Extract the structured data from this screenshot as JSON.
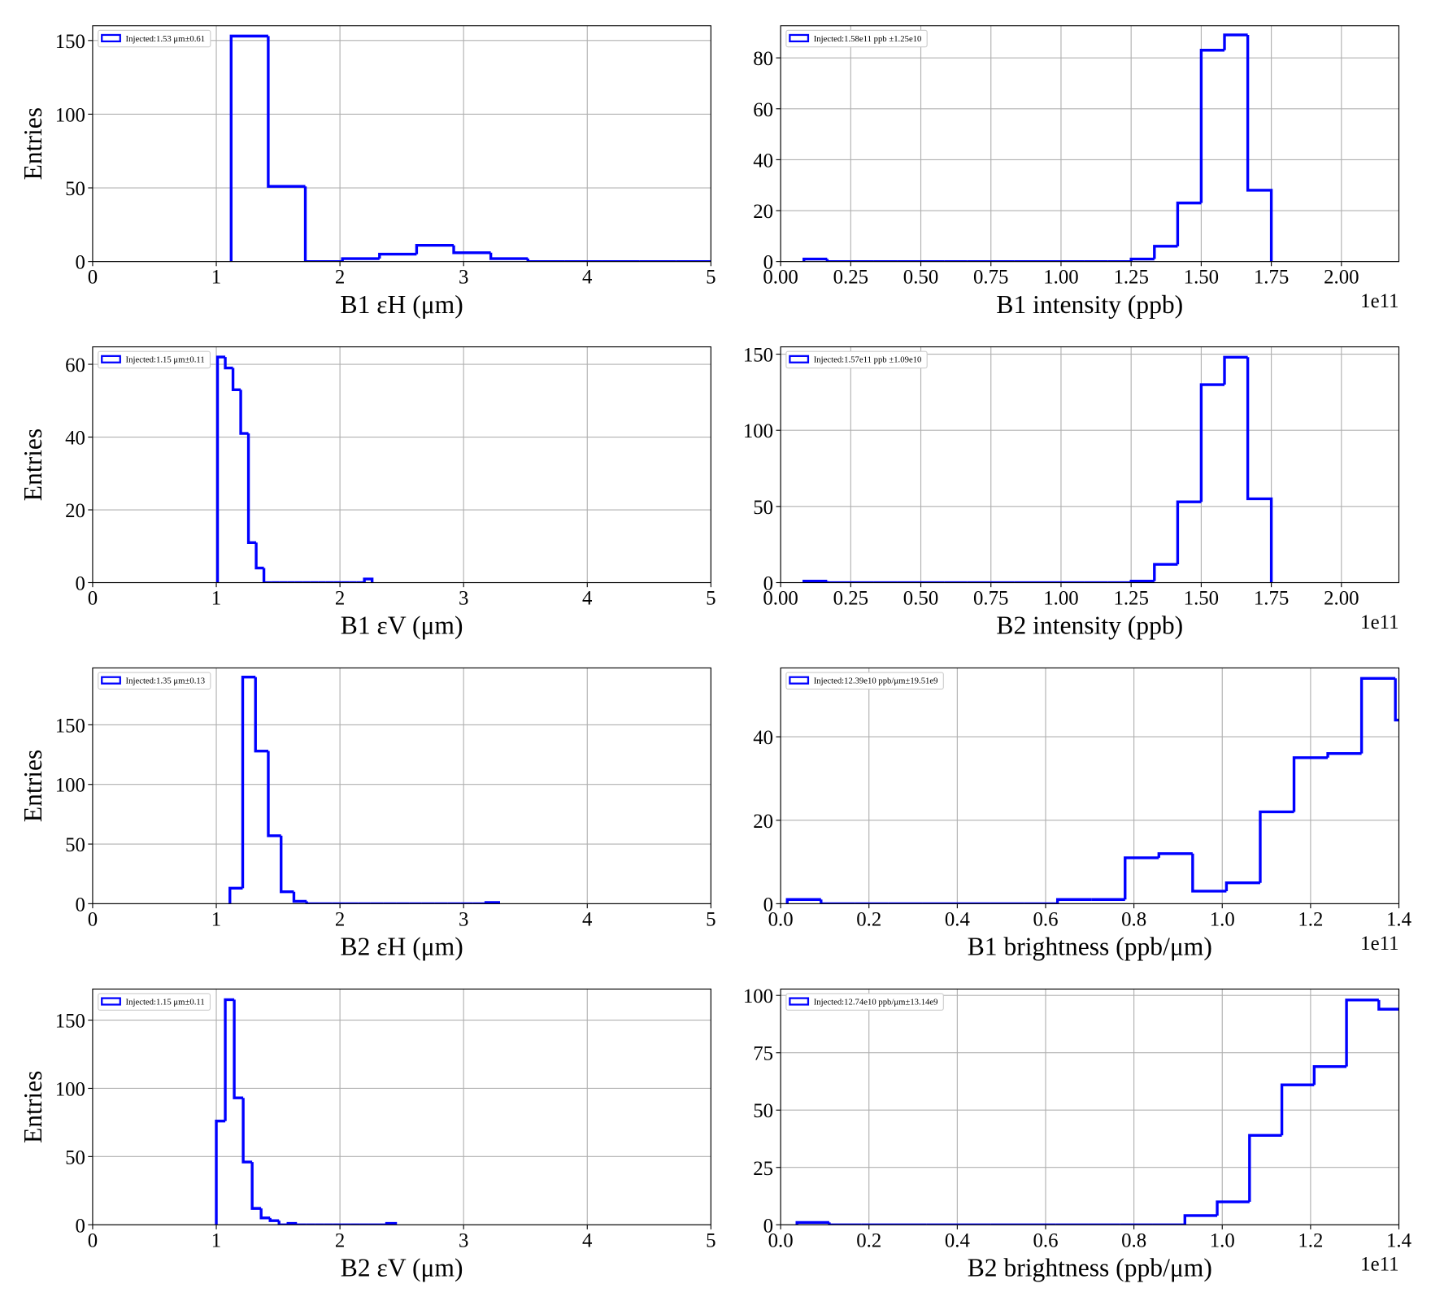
{
  "chart_data": [
    {
      "type": "histogram",
      "xlabel": "B1 εH (μm)",
      "ylabel": "Entries",
      "legend": "upper left",
      "grid": true,
      "xlim": [
        0,
        5
      ],
      "xticks": [
        0,
        1,
        2,
        3,
        4,
        5
      ],
      "ylim": [
        0,
        160
      ],
      "yticks": [
        0,
        50,
        100,
        150
      ],
      "bins": [
        1.12,
        1.42,
        1.72,
        2.02,
        2.32,
        2.62,
        2.92,
        3.22,
        3.52,
        3.82,
        4.12,
        4.42,
        4.72,
        5.02
      ],
      "series": [
        {
          "name": "Injected:1.53 μm±0.61",
          "color": "#0000ff",
          "values": [
            153,
            51,
            0,
            2,
            5,
            11,
            6,
            2,
            0,
            0,
            0,
            0,
            0
          ]
        }
      ]
    },
    {
      "type": "histogram",
      "xlabel": "B1 intensity (ppb)",
      "offset_text": "1e11",
      "legend": "upper left",
      "grid": true,
      "xlim": [
        0,
        2.205
      ],
      "xticks": [
        {
          "value": 0,
          "label": "0.00"
        },
        0.25,
        {
          "value": 0.5,
          "label": "0.50"
        },
        0.75,
        {
          "value": 1,
          "label": "1.00"
        },
        1.25,
        {
          "value": 1.5,
          "label": "1.50"
        },
        1.75,
        {
          "value": 2,
          "label": "2.00"
        }
      ],
      "ylim": [
        0,
        92.6
      ],
      "yticks": [
        0,
        20,
        40,
        60,
        80
      ],
      "bins": [
        0.083,
        0.166,
        0.25,
        0.333,
        0.416,
        0.5,
        0.583,
        0.666,
        0.75,
        0.833,
        0.916,
        1.0,
        1.083,
        1.166,
        1.25,
        1.333,
        1.416,
        1.5,
        1.583,
        1.666,
        1.75
      ],
      "series": [
        {
          "name": "Injected:1.58e11 ppb ±1.25e10",
          "color": "#0000ff",
          "values": [
            1,
            0,
            0,
            0,
            0,
            0,
            0,
            0,
            0,
            0,
            0,
            0,
            0,
            0,
            1,
            6,
            23,
            83,
            89,
            28
          ]
        }
      ]
    },
    {
      "type": "histogram",
      "xlabel": "B1 εV (μm)",
      "ylabel": "Entries",
      "legend": "upper left",
      "grid": true,
      "xlim": [
        0,
        5
      ],
      "xticks": [
        0,
        1,
        2,
        3,
        4,
        5
      ],
      "ylim": [
        0,
        64.8
      ],
      "yticks": [
        0,
        20,
        40,
        60
      ],
      "bins": [
        1.01,
        1.0725,
        1.135,
        1.1975,
        1.26,
        1.3225,
        1.385,
        1.4475,
        1.51,
        1.5725,
        1.635,
        1.6975,
        1.76,
        1.8225,
        1.885,
        1.9475,
        2.01,
        2.0725,
        2.135,
        2.1975,
        2.26
      ],
      "series": [
        {
          "name": "Injected:1.15 μm±0.11",
          "color": "#0000ff",
          "values": [
            62,
            59,
            53,
            41,
            11,
            4,
            0,
            0,
            0,
            0,
            0,
            0,
            0,
            0,
            0,
            0,
            0,
            0,
            0,
            1
          ]
        }
      ]
    },
    {
      "type": "histogram",
      "xlabel": "B2 intensity (ppb)",
      "offset_text": "1e11",
      "legend": "upper left",
      "grid": true,
      "xlim": [
        0,
        2.205
      ],
      "xticks": [
        {
          "value": 0,
          "label": "0.00"
        },
        0.25,
        {
          "value": 0.5,
          "label": "0.50"
        },
        0.75,
        {
          "value": 1,
          "label": "1.00"
        },
        1.25,
        {
          "value": 1.5,
          "label": "1.50"
        },
        1.75,
        {
          "value": 2,
          "label": "2.00"
        }
      ],
      "ylim": [
        0,
        154.8
      ],
      "yticks": [
        0,
        50,
        100,
        150
      ],
      "bins": [
        0.083,
        0.166,
        0.25,
        0.333,
        0.416,
        0.5,
        0.583,
        0.666,
        0.75,
        0.833,
        0.916,
        1.0,
        1.083,
        1.166,
        1.25,
        1.333,
        1.416,
        1.5,
        1.583,
        1.666,
        1.75
      ],
      "series": [
        {
          "name": "Injected:1.57e11 ppb ±1.09e10",
          "color": "#0000ff",
          "values": [
            1,
            0,
            0,
            0,
            0,
            0,
            0,
            0,
            0,
            0,
            0,
            0,
            0,
            0,
            1,
            12,
            53,
            130,
            148,
            55
          ]
        }
      ]
    },
    {
      "type": "histogram",
      "xlabel": "B2 εH (μm)",
      "ylabel": "Entries",
      "legend": "upper left",
      "grid": true,
      "xlim": [
        0,
        5
      ],
      "xticks": [
        0,
        1,
        2,
        3,
        4,
        5
      ],
      "ylim": [
        0,
        197.7
      ],
      "yticks": [
        0,
        50,
        100,
        150
      ],
      "bins": [
        1.11,
        1.2135,
        1.317,
        1.4205,
        1.524,
        1.6275,
        1.731,
        1.8345,
        1.938,
        2.0415,
        2.145,
        2.2485,
        2.352,
        2.4555,
        2.559,
        2.6625,
        2.766,
        2.8695,
        2.973,
        3.0765,
        3.18,
        3.2835
      ],
      "series": [
        {
          "name": "Injected:1.35 μm±0.13",
          "color": "#0000ff",
          "values": [
            13,
            190,
            128,
            57,
            10,
            2,
            0,
            0,
            0,
            0,
            0,
            0,
            0,
            0,
            0,
            0,
            0,
            0,
            0,
            0,
            1
          ]
        }
      ]
    },
    {
      "type": "histogram",
      "xlabel": "B1 brightness (ppb/μm)",
      "offset_text": "1e11",
      "legend": "upper left",
      "grid": true,
      "xlim": [
        0,
        1.4
      ],
      "xticks": [
        {
          "value": 0,
          "label": "0.0"
        },
        0.2,
        0.4,
        0.6,
        0.8,
        {
          "value": 1,
          "label": "1.0"
        },
        1.2,
        1.4
      ],
      "ylim": [
        0,
        56.5
      ],
      "yticks": [
        0,
        20,
        40
      ],
      "bins": [
        0.015,
        0.0915,
        0.168,
        0.2445,
        0.321,
        0.3975,
        0.474,
        0.5505,
        0.627,
        0.7035,
        0.78,
        0.8565,
        0.933,
        1.0095,
        1.086,
        1.1625,
        1.239,
        1.3155,
        1.392,
        1.4685
      ],
      "series": [
        {
          "name": "Injected:12.39e10 ppb/μm±19.51e9",
          "color": "#0000ff",
          "values": [
            1,
            0,
            0,
            0,
            0,
            0,
            0,
            0,
            1,
            1,
            11,
            12,
            3,
            5,
            22,
            35,
            36,
            54,
            44
          ]
        }
      ]
    },
    {
      "type": "histogram",
      "xlabel": "B2 εV (μm)",
      "ylabel": "Entries",
      "legend": "upper left",
      "grid": true,
      "xlim": [
        0,
        5
      ],
      "xticks": [
        0,
        1,
        2,
        3,
        4,
        5
      ],
      "ylim": [
        0,
        172.8
      ],
      "yticks": [
        0,
        50,
        100,
        150
      ],
      "bins": [
        1,
        1.0725,
        1.145,
        1.2175,
        1.29,
        1.3625,
        1.435,
        1.5075,
        1.58,
        1.6525,
        1.725,
        1.7975,
        1.87,
        1.9425,
        2.015,
        2.0875,
        2.16,
        2.2325,
        2.305,
        2.3775,
        2.45
      ],
      "series": [
        {
          "name": "Injected:1.15 μm±0.11",
          "color": "#0000ff",
          "values": [
            76,
            165,
            93,
            46,
            12,
            5,
            3,
            0,
            1,
            0,
            0,
            0,
            0,
            0,
            0,
            0,
            0,
            0,
            0,
            1
          ]
        }
      ]
    },
    {
      "type": "histogram",
      "xlabel": "B2 brightness (ppb/μm)",
      "offset_text": "1e11",
      "legend": "upper left",
      "grid": true,
      "xlim": [
        0,
        1.4
      ],
      "xticks": [
        {
          "value": 0,
          "label": "0.0"
        },
        0.2,
        0.4,
        0.6,
        0.8,
        {
          "value": 1,
          "label": "1.0"
        },
        1.2,
        1.4
      ],
      "ylim": [
        0,
        102.8
      ],
      "yticks": [
        0,
        25,
        50,
        75,
        100
      ],
      "bins": [
        0.037,
        0.1102,
        0.1834,
        0.2566,
        0.3298,
        0.403,
        0.4762,
        0.5494,
        0.6226,
        0.6958,
        0.769,
        0.8422,
        0.9154,
        0.9886,
        1.0618,
        1.135,
        1.2082,
        1.2814,
        1.3546,
        1.4278
      ],
      "series": [
        {
          "name": "Injected:12.74e10 ppb/μm±13.14e9",
          "color": "#0000ff",
          "values": [
            1,
            0,
            0,
            0,
            0,
            0,
            0,
            0,
            0,
            0,
            0,
            0,
            4,
            10,
            39,
            61,
            69,
            98,
            94
          ]
        }
      ]
    }
  ]
}
